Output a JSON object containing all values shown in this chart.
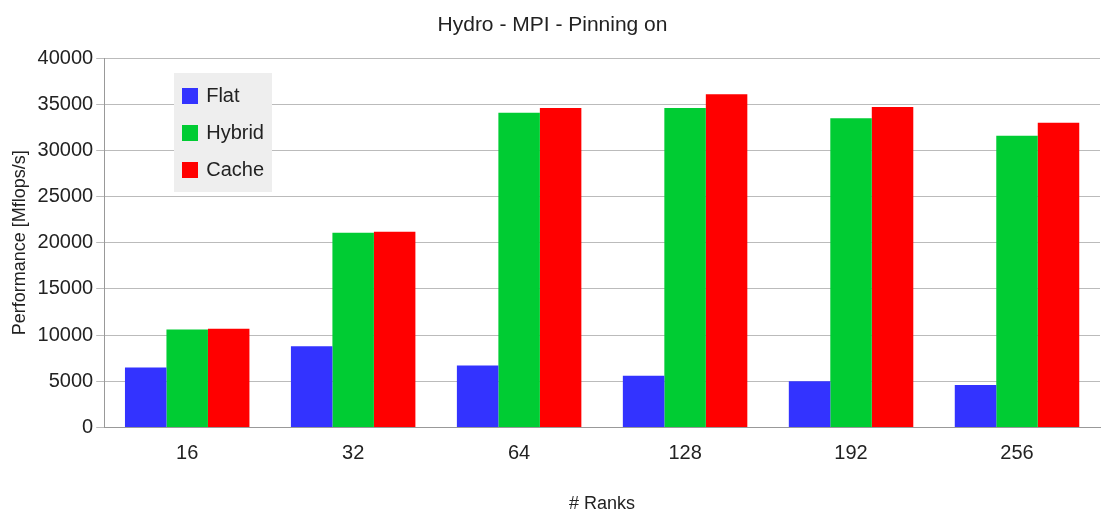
{
  "chart_data": {
    "type": "bar",
    "title": "Hydro - MPI - Pinning on",
    "xlabel": "# Ranks",
    "ylabel": "Performance [Mflops/s]",
    "categories": [
      "16",
      "32",
      "64",
      "128",
      "192",
      "256"
    ],
    "series": [
      {
        "name": "Flat",
        "color": "#3333ff",
        "values": [
          6500,
          8800,
          6700,
          5600,
          5000,
          4600
        ]
      },
      {
        "name": "Hybrid",
        "color": "#00cc33",
        "values": [
          10600,
          21100,
          34100,
          34600,
          33500,
          31600
        ]
      },
      {
        "name": "Cache",
        "color": "#ff0000",
        "values": [
          10700,
          21200,
          34600,
          36100,
          34700,
          33000
        ]
      }
    ],
    "ylim": [
      0,
      40000
    ],
    "yticks": [
      0,
      5000,
      10000,
      15000,
      20000,
      25000,
      30000,
      35000,
      40000
    ],
    "grid": "y",
    "legend": "top left"
  }
}
